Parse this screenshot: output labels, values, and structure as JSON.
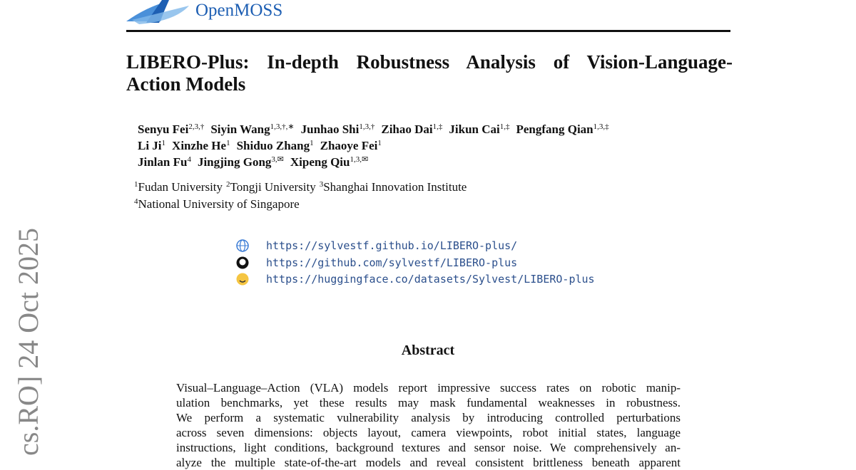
{
  "header": {
    "logo_text": "OpenMOSS"
  },
  "side_text": "cs.RO]  24 Oct 2025",
  "title_lines": [
    "LIBERO-Plus:  In-depth Robustness Analysis of Vision-Language-",
    "Action Models"
  ],
  "author_lines": [
    [
      {
        "name": "Senyu Fei",
        "sup": "2,3,†"
      },
      {
        "name": "Siyin Wang",
        "sup": "1,3,†,∗"
      },
      {
        "name": "Junhao Shi",
        "sup": "1,3,†"
      },
      {
        "name": "Zihao Dai",
        "sup": "1,‡"
      },
      {
        "name": "Jikun Cai",
        "sup": "1,‡"
      },
      {
        "name": "Pengfang Qian",
        "sup": "1,3,‡"
      }
    ],
    [
      {
        "name": "Li Ji",
        "sup": "1"
      },
      {
        "name": "Xinzhe He",
        "sup": "1"
      },
      {
        "name": "Shiduo Zhang",
        "sup": "1"
      },
      {
        "name": "Zhaoye Fei",
        "sup": "1"
      }
    ],
    [
      {
        "name": "Jinlan Fu",
        "sup": "4"
      },
      {
        "name": "Jingjing Gong",
        "sup": "3,✉"
      },
      {
        "name": "Xipeng Qiu",
        "sup": "1,3,✉"
      }
    ]
  ],
  "affiliation_lines": [
    [
      {
        "sup": "1",
        "name": "Fudan University"
      },
      {
        "sup": "2",
        "name": "Tongji University"
      },
      {
        "sup": "3",
        "name": "Shanghai Innovation Institute"
      }
    ],
    [
      {
        "sup": "4",
        "name": "National University of Singapore"
      }
    ]
  ],
  "links": [
    "https://sylvestf.github.io/LIBERO-plus/",
    "https://github.com/sylvestf/LIBERO-plus",
    "https://huggingface.co/datasets/Sylvest/LIBERO-plus"
  ],
  "abstract": {
    "heading": "Abstract",
    "lines": [
      "Visual–Language–Action (VLA) models report impressive success rates on robotic manip-",
      "ulation benchmarks, yet these results may mask fundamental weaknesses in robustness.",
      "We perform a systematic vulnerability analysis by introducing controlled perturbations",
      "across seven dimensions: objects layout, camera viewpoints, robot initial states, language",
      "instructions, light conditions, background textures and sensor noise. We comprehensively an-",
      "alyze the multiple state-of-the-art models and reveal consistent brittleness beneath apparent"
    ]
  }
}
